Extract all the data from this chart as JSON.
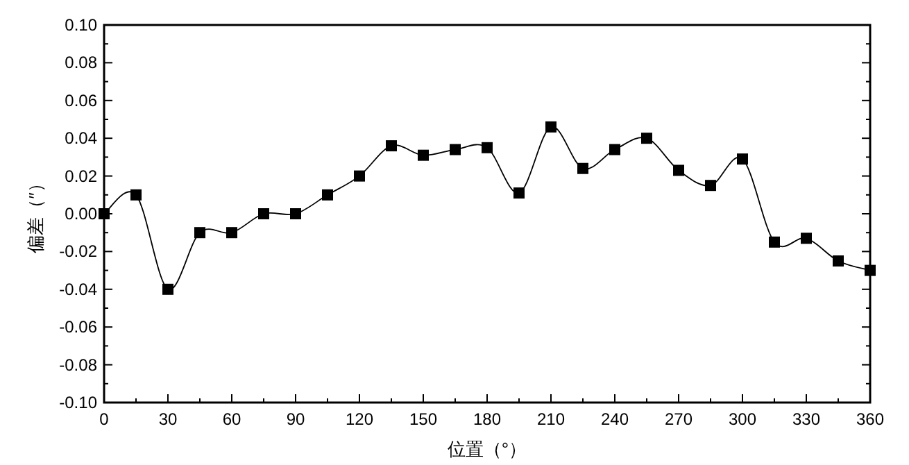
{
  "chart_data": {
    "type": "line",
    "xlabel": "位置（°）",
    "ylabel": "偏差（″）",
    "x": [
      0,
      15,
      30,
      45,
      60,
      75,
      90,
      105,
      120,
      135,
      150,
      165,
      180,
      195,
      210,
      225,
      240,
      255,
      270,
      285,
      300,
      315,
      330,
      345,
      360
    ],
    "series": [
      {
        "color": "#000000",
        "values": [
          0,
          0.01,
          -0.04,
          -0.01,
          -0.01,
          0,
          0,
          0.01,
          0.02,
          0.036,
          0.031,
          0.034,
          0.035,
          0.011,
          0.046,
          0.024,
          0.034,
          0.04,
          0.023,
          0.015,
          0.029,
          -0.015,
          -0.013,
          -0.025,
          -0.03
        ]
      }
    ],
    "xlim": [
      0,
      360
    ],
    "xticks": [
      0,
      30,
      60,
      90,
      120,
      150,
      180,
      210,
      240,
      270,
      300,
      330,
      360
    ],
    "ylim": [
      -0.1,
      0.1
    ],
    "yticks": [
      {
        "value": -0.1,
        "label": "-0.10"
      },
      {
        "value": -0.08,
        "label": "-0.08"
      },
      {
        "value": -0.06,
        "label": "-0.06"
      },
      {
        "value": -0.04,
        "label": "-0.04"
      },
      {
        "value": -0.02,
        "label": "-0.02"
      },
      {
        "value": 0,
        "label": "0.00"
      },
      {
        "value": 0.02,
        "label": "0.02"
      },
      {
        "value": 0.04,
        "label": "0.04"
      },
      {
        "value": 0.06,
        "label": "0.06"
      },
      {
        "value": 0.08,
        "label": "0.08"
      },
      {
        "value": 0.1,
        "label": "0.10"
      }
    ],
    "marker": "square",
    "line_style": "solid"
  }
}
